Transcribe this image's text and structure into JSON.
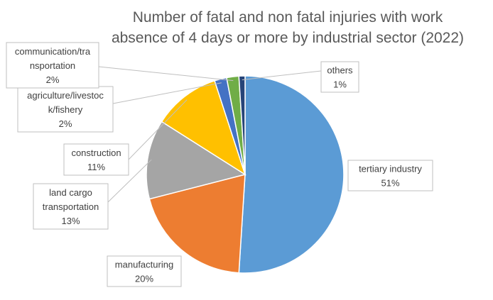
{
  "chart_data": {
    "type": "pie",
    "title_lines": [
      "Number of fatal and non fatal injuries with work",
      "absence of 4 days or more by industrial sector (2022)"
    ],
    "slices": [
      {
        "label_lines": [
          "tertiary industry"
        ],
        "value": 51,
        "value_label": "51%",
        "color": "#5B9BD5"
      },
      {
        "label_lines": [
          "manufacturing"
        ],
        "value": 20,
        "value_label": "20%",
        "color": "#ED7D31"
      },
      {
        "label_lines": [
          "land cargo",
          "transportation"
        ],
        "value": 13,
        "value_label": "13%",
        "color": "#A5A5A5"
      },
      {
        "label_lines": [
          "construction"
        ],
        "value": 11,
        "value_label": "11%",
        "color": "#FFC000"
      },
      {
        "label_lines": [
          "agriculture/livestoc",
          "k/fishery"
        ],
        "value": 2,
        "value_label": "2%",
        "color": "#4472C4"
      },
      {
        "label_lines": [
          "communication/tra",
          "nsportation"
        ],
        "value": 2,
        "value_label": "2%",
        "color": "#70AD47"
      },
      {
        "label_lines": [
          "others"
        ],
        "value": 1,
        "value_label": "1%",
        "color": "#264478"
      }
    ]
  }
}
